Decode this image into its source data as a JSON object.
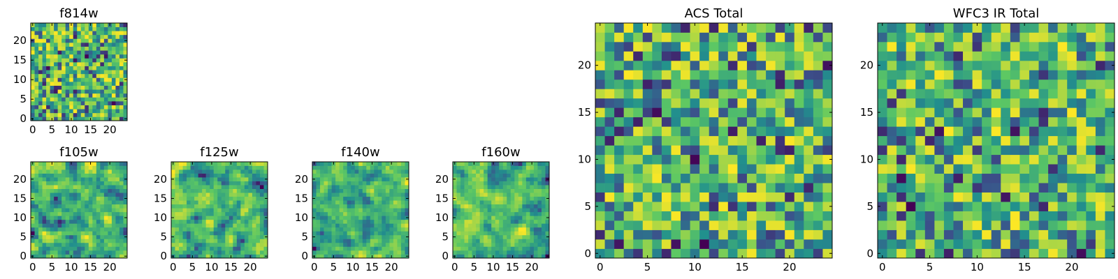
{
  "figure": {
    "colors": {
      "background": "#ffffff",
      "axis": "#000000"
    },
    "colormap": "viridis",
    "colormap_stops": [
      "#440154",
      "#3b528b",
      "#21908d",
      "#5dc863",
      "#fde725"
    ]
  },
  "chart_data": [
    {
      "type": "heatmap",
      "title": "f814w",
      "grid_size": 25,
      "xlim": [
        0,
        24
      ],
      "ylim": [
        0,
        24
      ],
      "x_ticks": [
        "0",
        "5",
        "10",
        "15",
        "20"
      ],
      "y_ticks": [
        "0",
        "5",
        "10",
        "15",
        "20"
      ],
      "seed": 11,
      "smooth": 0
    },
    {
      "type": "heatmap",
      "title": "f105w",
      "grid_size": 25,
      "xlim": [
        0,
        24
      ],
      "ylim": [
        0,
        24
      ],
      "x_ticks": [
        "0",
        "5",
        "10",
        "15",
        "20"
      ],
      "y_ticks": [
        "0",
        "5",
        "10",
        "15",
        "20"
      ],
      "seed": 23,
      "smooth": 1
    },
    {
      "type": "heatmap",
      "title": "f125w",
      "grid_size": 25,
      "xlim": [
        0,
        24
      ],
      "ylim": [
        0,
        24
      ],
      "x_ticks": [
        "0",
        "5",
        "10",
        "15",
        "20"
      ],
      "y_ticks": [
        "0",
        "5",
        "10",
        "15",
        "20"
      ],
      "seed": 37,
      "smooth": 1
    },
    {
      "type": "heatmap",
      "title": "f140w",
      "grid_size": 25,
      "xlim": [
        0,
        24
      ],
      "ylim": [
        0,
        24
      ],
      "x_ticks": [
        "0",
        "5",
        "10",
        "15",
        "20"
      ],
      "y_ticks": [
        "0",
        "5",
        "10",
        "15",
        "20"
      ],
      "seed": 41,
      "smooth": 1
    },
    {
      "type": "heatmap",
      "title": "f160w",
      "grid_size": 25,
      "xlim": [
        0,
        24
      ],
      "ylim": [
        0,
        24
      ],
      "x_ticks": [
        "0",
        "5",
        "10",
        "15",
        "20"
      ],
      "y_ticks": [
        "0",
        "5",
        "10",
        "15",
        "20"
      ],
      "seed": 53,
      "smooth": 1
    },
    {
      "type": "heatmap",
      "title": "ACS Total",
      "grid_size": 25,
      "xlim": [
        0,
        24
      ],
      "ylim": [
        0,
        24
      ],
      "x_ticks": [
        "0",
        "5",
        "10",
        "15",
        "20"
      ],
      "y_ticks": [
        "0",
        "5",
        "10",
        "15",
        "20"
      ],
      "seed": 67,
      "smooth": 0
    },
    {
      "type": "heatmap",
      "title": "WFC3 IR Total",
      "grid_size": 25,
      "xlim": [
        0,
        24
      ],
      "ylim": [
        0,
        24
      ],
      "x_ticks": [
        "0",
        "5",
        "10",
        "15",
        "20"
      ],
      "y_ticks": [
        "0",
        "5",
        "10",
        "15",
        "20"
      ],
      "seed": 79,
      "smooth": 0
    }
  ]
}
